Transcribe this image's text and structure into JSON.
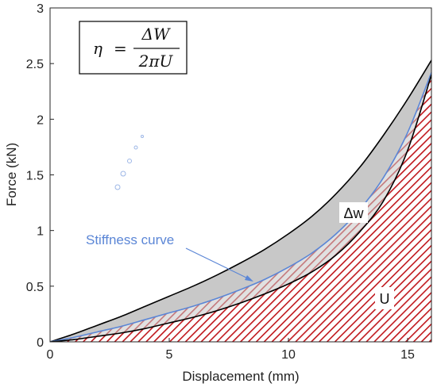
{
  "chart_data": {
    "type": "area",
    "xlabel": "Displacement (mm)",
    "ylabel": "Force (kN)",
    "xlim": [
      0,
      16
    ],
    "ylim": [
      0,
      3
    ],
    "xticks": [
      "0",
      "5",
      "10",
      "15"
    ],
    "yticks": [
      "0",
      "0.5",
      "1",
      "1.5",
      "2",
      "2.5",
      "3"
    ],
    "grid": false,
    "formula": {
      "lhs": "η",
      "equals": "=",
      "numerator": "ΔW",
      "denominator": "2πU"
    },
    "series": [
      {
        "name": "",
        "color": "#000000",
        "x": [
          0,
          1,
          2,
          3,
          4,
          5,
          6,
          7,
          8,
          9,
          10,
          11,
          12,
          13,
          14,
          15,
          16
        ],
        "y": [
          0,
          0.07,
          0.15,
          0.23,
          0.32,
          0.41,
          0.5,
          0.6,
          0.71,
          0.83,
          0.97,
          1.13,
          1.33,
          1.57,
          1.86,
          2.18,
          2.53
        ]
      },
      {
        "name": "Stiffness curve",
        "color": "#5b86d6",
        "x": [
          0,
          1,
          2,
          3,
          4,
          5,
          6,
          7,
          8,
          9,
          10,
          11,
          12,
          13,
          14,
          15,
          16
        ],
        "y": [
          0,
          0.04,
          0.09,
          0.14,
          0.2,
          0.26,
          0.32,
          0.39,
          0.47,
          0.56,
          0.67,
          0.8,
          0.97,
          1.19,
          1.48,
          1.88,
          2.42
        ]
      },
      {
        "name": "",
        "color": "#000000",
        "x": [
          0,
          1,
          2,
          3,
          4,
          5,
          6,
          7,
          8,
          9,
          10,
          11,
          12,
          13,
          14,
          15,
          16
        ],
        "y": [
          0,
          0.02,
          0.05,
          0.08,
          0.12,
          0.17,
          0.22,
          0.28,
          0.35,
          0.43,
          0.52,
          0.63,
          0.78,
          0.99,
          1.27,
          1.72,
          2.4
        ]
      }
    ],
    "annotations": {
      "dw": "Δw",
      "u": "U",
      "stiffness": "Stiffness curve"
    },
    "colors": {
      "hatch": "#c0171c",
      "dw_fill": "#c8c8c8",
      "stiffness": "#5b86d6"
    }
  }
}
